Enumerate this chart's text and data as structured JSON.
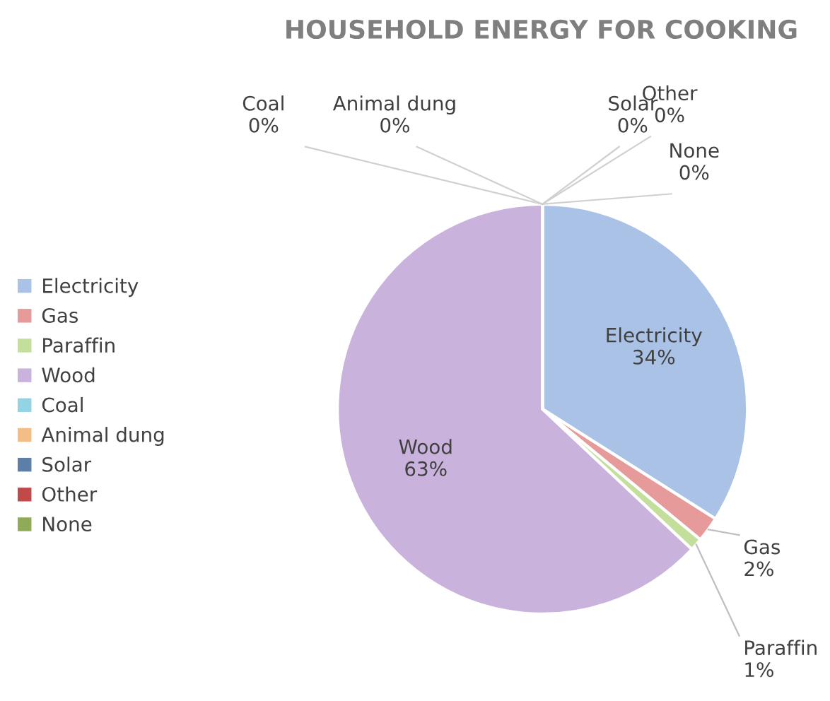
{
  "chart_data": {
    "type": "pie",
    "title": "HOUSEHOLD ENERGY FOR COOKING",
    "categories": [
      "Electricity",
      "Gas",
      "Paraffin",
      "Wood",
      "Coal",
      "Animal dung",
      "Solar",
      "Other",
      "None"
    ],
    "values": [
      34,
      2,
      1,
      63,
      0,
      0,
      0,
      0,
      0
    ],
    "colors": [
      "#a9c2e6",
      "#e69a9a",
      "#c4de9c",
      "#c9b3dd",
      "#93d3e3",
      "#f5bd86",
      "#5d7ea6",
      "#c04a4a",
      "#8fab57"
    ],
    "value_labels": [
      "34%",
      "2%",
      "1%",
      "63%",
      "0%",
      "0%",
      "0%",
      "0%",
      "0%"
    ],
    "legend": "left"
  }
}
